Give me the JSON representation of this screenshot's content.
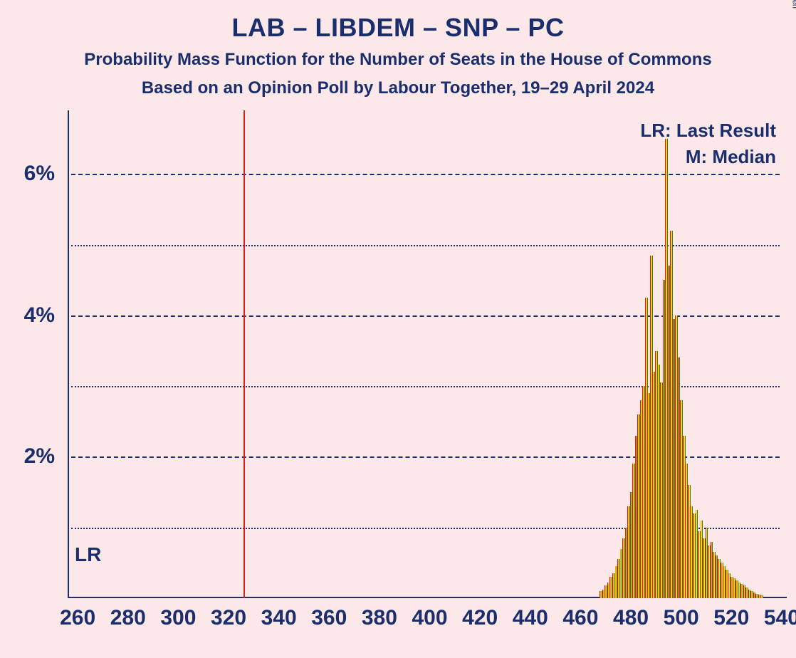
{
  "background_color": "#fce8e8",
  "text_color": "#1a2e6e",
  "copyright_color": "#1a2e6e",
  "title": "LAB – LIBDEM – SNP – PC",
  "subtitle1": "Probability Mass Function for the Number of Seats in the House of Commons",
  "subtitle2": "Based on an Opinion Poll by Labour Together, 19–29 April 2024",
  "copyright": "© 2024 Filip van Laenen",
  "legend": {
    "lr": "LR: Last Result",
    "m": "M: Median"
  },
  "chart": {
    "type": "bar",
    "axis_color": "#1a2e6e",
    "grid_color": "#1a2e6e",
    "lr_line_color": "#d62020",
    "xlim": [
      256,
      542
    ],
    "ylim": [
      0,
      6.9
    ],
    "y_ticks_major": [
      2,
      4,
      6
    ],
    "y_ticks_minor": [
      1,
      3,
      5
    ],
    "y_tick_labels": {
      "2": "2%",
      "4": "4%",
      "6": "6%"
    },
    "x_ticks": [
      260,
      280,
      300,
      320,
      340,
      360,
      380,
      400,
      420,
      440,
      460,
      480,
      500,
      520,
      540
    ],
    "lr_x": 326,
    "lr_label": "LR",
    "bar_colors": [
      "#d62020",
      "#f5a623",
      "#ffe600",
      "#2e7d32"
    ],
    "bars": [
      {
        "x": 468,
        "y": 0.1
      },
      {
        "x": 469,
        "y": 0.12
      },
      {
        "x": 470,
        "y": 0.18
      },
      {
        "x": 471,
        "y": 0.22
      },
      {
        "x": 472,
        "y": 0.3
      },
      {
        "x": 473,
        "y": 0.35
      },
      {
        "x": 474,
        "y": 0.45
      },
      {
        "x": 475,
        "y": 0.55
      },
      {
        "x": 476,
        "y": 0.7
      },
      {
        "x": 477,
        "y": 0.85
      },
      {
        "x": 478,
        "y": 1.0
      },
      {
        "x": 479,
        "y": 1.3
      },
      {
        "x": 480,
        "y": 1.5
      },
      {
        "x": 481,
        "y": 1.9
      },
      {
        "x": 482,
        "y": 2.3
      },
      {
        "x": 483,
        "y": 2.6
      },
      {
        "x": 484,
        "y": 2.8
      },
      {
        "x": 485,
        "y": 3.0
      },
      {
        "x": 486,
        "y": 4.25
      },
      {
        "x": 487,
        "y": 2.9
      },
      {
        "x": 488,
        "y": 4.85
      },
      {
        "x": 489,
        "y": 3.2
      },
      {
        "x": 490,
        "y": 3.5
      },
      {
        "x": 491,
        "y": 3.3
      },
      {
        "x": 492,
        "y": 3.05
      },
      {
        "x": 493,
        "y": 4.5
      },
      {
        "x": 494,
        "y": 6.5
      },
      {
        "x": 495,
        "y": 4.7
      },
      {
        "x": 496,
        "y": 5.2
      },
      {
        "x": 497,
        "y": 3.95
      },
      {
        "x": 498,
        "y": 4.0
      },
      {
        "x": 499,
        "y": 3.4
      },
      {
        "x": 500,
        "y": 2.8
      },
      {
        "x": 501,
        "y": 2.3
      },
      {
        "x": 502,
        "y": 1.9
      },
      {
        "x": 503,
        "y": 1.6
      },
      {
        "x": 504,
        "y": 1.3
      },
      {
        "x": 505,
        "y": 1.2
      },
      {
        "x": 506,
        "y": 1.25
      },
      {
        "x": 507,
        "y": 0.95
      },
      {
        "x": 508,
        "y": 1.1
      },
      {
        "x": 509,
        "y": 0.85
      },
      {
        "x": 510,
        "y": 1.0
      },
      {
        "x": 511,
        "y": 0.75
      },
      {
        "x": 512,
        "y": 0.8
      },
      {
        "x": 513,
        "y": 0.65
      },
      {
        "x": 514,
        "y": 0.6
      },
      {
        "x": 515,
        "y": 0.55
      },
      {
        "x": 516,
        "y": 0.5
      },
      {
        "x": 517,
        "y": 0.45
      },
      {
        "x": 518,
        "y": 0.4
      },
      {
        "x": 519,
        "y": 0.35
      },
      {
        "x": 520,
        "y": 0.3
      },
      {
        "x": 521,
        "y": 0.28
      },
      {
        "x": 522,
        "y": 0.25
      },
      {
        "x": 523,
        "y": 0.22
      },
      {
        "x": 524,
        "y": 0.2
      },
      {
        "x": 525,
        "y": 0.18
      },
      {
        "x": 526,
        "y": 0.15
      },
      {
        "x": 527,
        "y": 0.12
      },
      {
        "x": 528,
        "y": 0.1
      },
      {
        "x": 529,
        "y": 0.08
      },
      {
        "x": 530,
        "y": 0.06
      },
      {
        "x": 531,
        "y": 0.05
      },
      {
        "x": 532,
        "y": 0.04
      }
    ]
  }
}
